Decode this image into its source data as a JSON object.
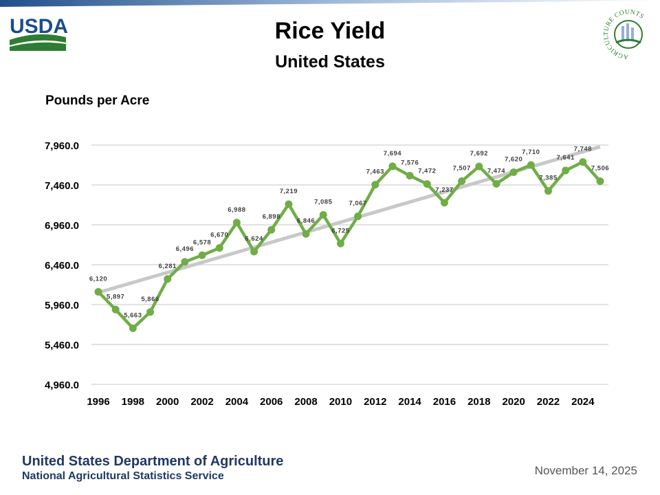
{
  "header": {
    "title": "Rice Yield",
    "subtitle": "United States",
    "logo_text": "USDA",
    "badge_text": "AGRICULTURE COUNTS"
  },
  "footer": {
    "dept": "United States Department of Agriculture",
    "service": "National Agricultural Statistics Service",
    "date": "November 14, 2025"
  },
  "colors": {
    "line": "#70ad47",
    "trend": "#c8c8c8",
    "grid": "#d9d9d9",
    "footer": "#1f3864"
  },
  "chart_data": {
    "type": "line",
    "title": "Rice Yield",
    "subtitle": "United States",
    "ylabel": "Pounds per Acre",
    "xlabel": "",
    "ylim": [
      4960,
      7960
    ],
    "yticks": [
      "4,960.0",
      "5,460.0",
      "5,960.0",
      "6,460.0",
      "6,960.0",
      "7,460.0",
      "7,960.0"
    ],
    "xticks": [
      "1996",
      "1998",
      "2000",
      "2002",
      "2004",
      "2006",
      "2008",
      "2010",
      "2012",
      "2014",
      "2016",
      "2018",
      "2020",
      "2022",
      "2024"
    ],
    "x": [
      1996,
      1997,
      1998,
      1999,
      2000,
      2001,
      2002,
      2003,
      2004,
      2005,
      2006,
      2007,
      2008,
      2009,
      2010,
      2011,
      2012,
      2013,
      2014,
      2015,
      2016,
      2017,
      2018,
      2019,
      2020,
      2021,
      2022,
      2023,
      2024,
      2025
    ],
    "series": [
      {
        "name": "Yield",
        "values": [
          6120,
          5897,
          5663,
          5866,
          6281,
          6496,
          6578,
          6670,
          6988,
          6624,
          6898,
          7219,
          6846,
          7085,
          6725,
          7067,
          7463,
          7694,
          7576,
          7472,
          7237,
          7507,
          7692,
          7474,
          7620,
          7710,
          7385,
          7641,
          7748,
          7506
        ],
        "labels": [
          "6,120",
          "5,897",
          "5,663",
          "5,866",
          "6,281",
          "6,496",
          "6,578",
          "6,670",
          "6,988",
          "6,624",
          "6,898",
          "7,219",
          "6,846",
          "7,085",
          "6,725",
          "7,067",
          "7,463",
          "7,694",
          "7,576",
          "7,472",
          "7,237",
          "7,507",
          "7,692",
          "7,474",
          "7,620",
          "7,710",
          "7,385",
          "7,641",
          "7,748",
          "7,506"
        ]
      }
    ],
    "trendline": "linear",
    "grid": true,
    "legend": "none"
  }
}
